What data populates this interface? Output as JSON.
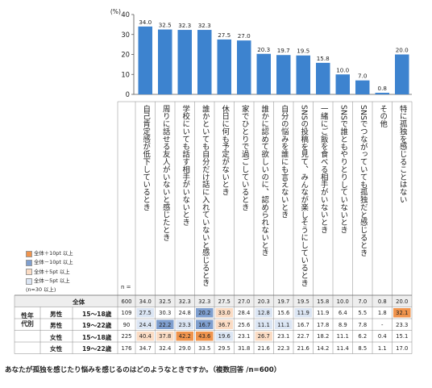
{
  "chart_data": {
    "type": "bar",
    "y_unit": "(%)",
    "ylim": [
      0,
      40
    ],
    "yticks": [
      0,
      10,
      20,
      30,
      40
    ],
    "categories": [
      "自己肯定感が低下しているとき",
      "周りに話せる友人がいないと感じたとき",
      "学校にいても話す相手がいないとき",
      "誰かといても自分だけ話に入れていないと感じるとき",
      "休日に何も予定がないとき",
      "家でひとりで過ごしているとき",
      "誰かに認めて欲しいのに、認められないとき",
      "自分の悩みを誰にも言えないとき",
      "SNSの投稿を見て、みんなが楽しそうにしているとき",
      "一緒にご飯を食べる相手がいないとき",
      "SNSで誰ともやりとりしていないとき",
      "SNSでつながっていても孤独だと感じるとき",
      "その他",
      "特に孤独を感じることはない"
    ],
    "values": [
      34.0,
      32.5,
      32.3,
      32.3,
      27.5,
      27.0,
      20.3,
      19.7,
      19.5,
      15.8,
      10.0,
      7.0,
      0.8,
      20.0
    ],
    "bar_color": "#3d83cf",
    "legend": [
      {
        "label": "全体＋10pt 以上",
        "color": "#f0944d"
      },
      {
        "label": "全体－10pt 以上",
        "color": "#7f9fcf"
      },
      {
        "label": "全体＋5pt 以上",
        "color": "#fbdcc4"
      },
      {
        "label": "全体－5pt 以上",
        "color": "#dce6f4"
      }
    ],
    "legend_note": "(n=30 以上)",
    "n_header": "n =",
    "table": {
      "rows": [
        {
          "group": "全体",
          "label": "",
          "n": "600",
          "values": [
            "34.0",
            "32.5",
            "32.3",
            "32.3",
            "27.5",
            "27.0",
            "20.3",
            "19.7",
            "19.5",
            "15.8",
            "10.0",
            "7.0",
            "0.8",
            "20.0"
          ],
          "flags": [
            "",
            "",
            "",
            "",
            "",
            "",
            "",
            "",
            "",
            "",
            "",
            "",
            "",
            ""
          ]
        },
        {
          "group": "男性",
          "label": "15～18歳",
          "n": "109",
          "values": [
            "27.5",
            "30.3",
            "24.8",
            "20.2",
            "33.0",
            "28.4",
            "12.8",
            "15.6",
            "11.9",
            "11.9",
            "6.4",
            "5.5",
            "1.8",
            "32.1"
          ],
          "flags": [
            "lb",
            "",
            "",
            "db",
            "lo",
            "",
            "lb",
            "",
            "lb",
            "",
            "",
            "",
            "",
            "do"
          ]
        },
        {
          "group": "男性",
          "label": "19～22歳",
          "n": "90",
          "values": [
            "24.4",
            "22.2",
            "23.3",
            "16.7",
            "36.7",
            "25.6",
            "11.1",
            "11.1",
            "16.7",
            "17.8",
            "8.9",
            "7.8",
            "-",
            "23.3"
          ],
          "flags": [
            "lb",
            "db",
            "lb",
            "db",
            "lo",
            "",
            "lb",
            "lb",
            "",
            "",
            "",
            "",
            "",
            ""
          ]
        },
        {
          "group": "女性",
          "label": "15～18歳",
          "n": "225",
          "values": [
            "40.4",
            "37.8",
            "42.2",
            "43.6",
            "19.6",
            "23.1",
            "26.7",
            "23.1",
            "22.7",
            "18.2",
            "11.1",
            "6.2",
            "0.4",
            "15.1"
          ],
          "flags": [
            "lo",
            "lo",
            "do",
            "do",
            "lb",
            "",
            "lo",
            "",
            "",
            "",
            "",
            "",
            "",
            ""
          ]
        },
        {
          "group": "女性",
          "label": "19～22歳",
          "n": "176",
          "values": [
            "34.7",
            "32.4",
            "29.0",
            "33.5",
            "29.5",
            "31.8",
            "21.6",
            "22.3",
            "21.6",
            "14.2",
            "11.4",
            "8.5",
            "1.1",
            "17.0"
          ],
          "flags": [
            "",
            "",
            "",
            "",
            "",
            "",
            "",
            "",
            "",
            "",
            "",
            "",
            "",
            ""
          ]
        }
      ],
      "side_label": "性年代別"
    },
    "caption": "あなたが孤独を感じたり悩みを感じるのはどのようなときですか。（複数回答 /n=600）"
  }
}
